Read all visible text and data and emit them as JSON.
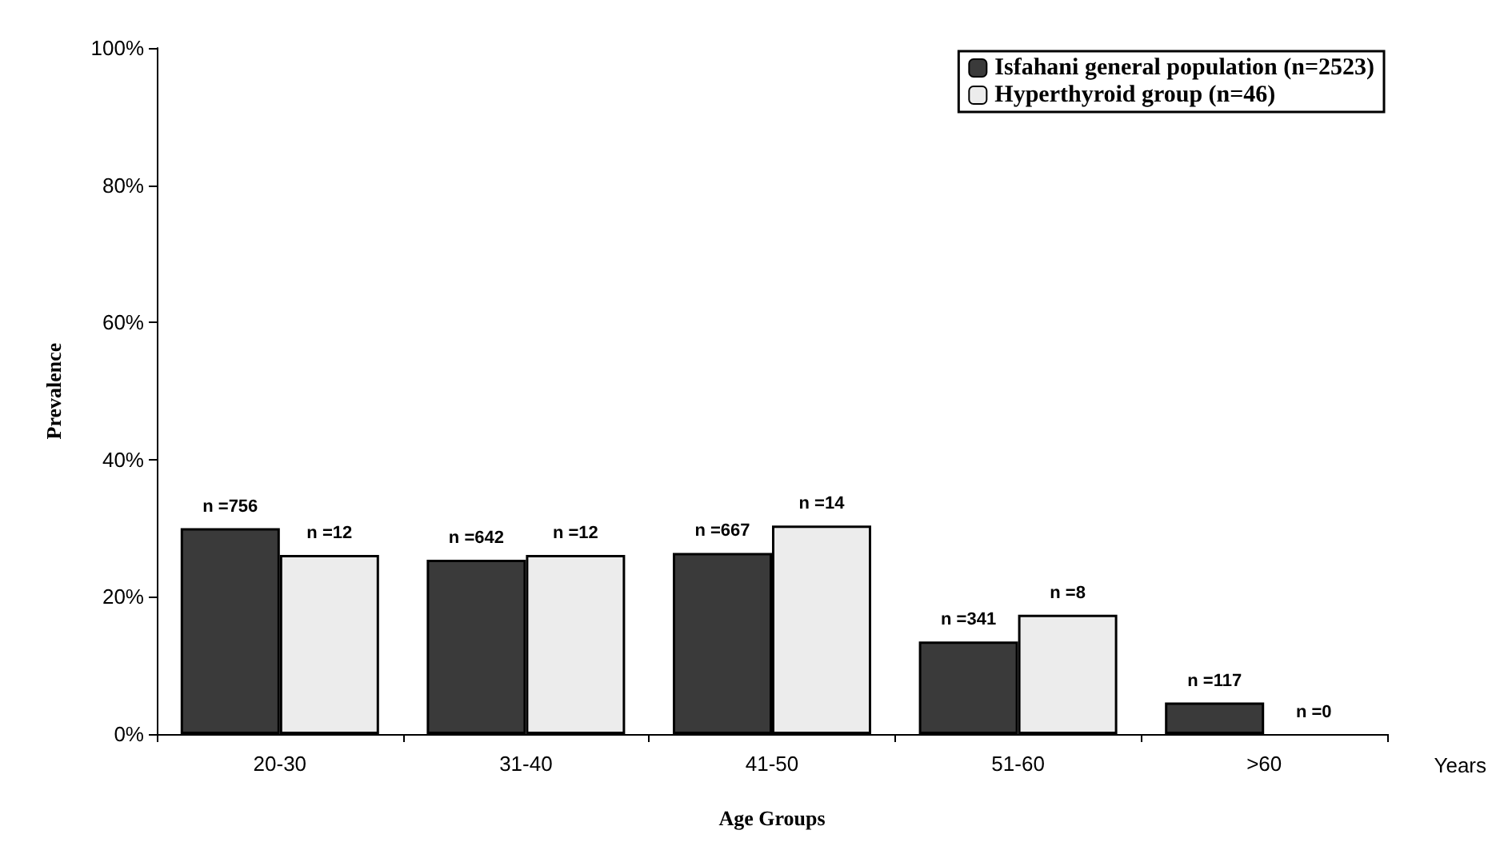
{
  "chart_data": {
    "type": "bar",
    "xlabel": "Age Groups",
    "ylabel": "Prevalence",
    "categories": [
      "20-30",
      "31-40",
      "41-50",
      "51-60",
      ">60"
    ],
    "series": [
      {
        "name": "Isfahani general population (n=2523)",
        "color": "#3a3a3a",
        "values": [
          30.0,
          25.4,
          26.4,
          13.5,
          4.6
        ]
      },
      {
        "name": "Hyperthyroid group (n=46)",
        "color": "#ececec",
        "values": [
          26.1,
          26.1,
          30.4,
          17.4,
          0
        ]
      }
    ],
    "ylim": [
      0,
      100
    ],
    "yticks": [
      {
        "value": 0,
        "label": "0%"
      },
      {
        "value": 20,
        "label": "20%"
      },
      {
        "value": 40,
        "label": "40%"
      },
      {
        "value": 60,
        "label": "60%"
      },
      {
        "value": 80,
        "label": "80%"
      },
      {
        "value": 100,
        "label": "100%"
      }
    ],
    "grid": false,
    "legend": "top right",
    "annotations": [
      "Years",
      {
        "text": "n =756",
        "x": "20-30",
        "y": 30.0
      },
      {
        "text": "n =12",
        "x": "20-30",
        "y": 26.1
      },
      {
        "text": "n =642",
        "x": "31-40",
        "y": 25.4
      },
      {
        "text": "n =12",
        "x": "31-40",
        "y": 26.1
      },
      {
        "text": "n =667",
        "x": "41-50",
        "y": 26.4
      },
      {
        "text": "n =14",
        "x": "41-50",
        "y": 30.4
      },
      {
        "text": "n =341",
        "x": "51-60",
        "y": 13.5
      },
      {
        "text": "n =8",
        "x": "51-60",
        "y": 17.4
      },
      {
        "text": "n =117",
        "x": ">60",
        "y": 4.6
      },
      {
        "text": "n =0",
        "x": ">60",
        "y": 0
      }
    ]
  }
}
